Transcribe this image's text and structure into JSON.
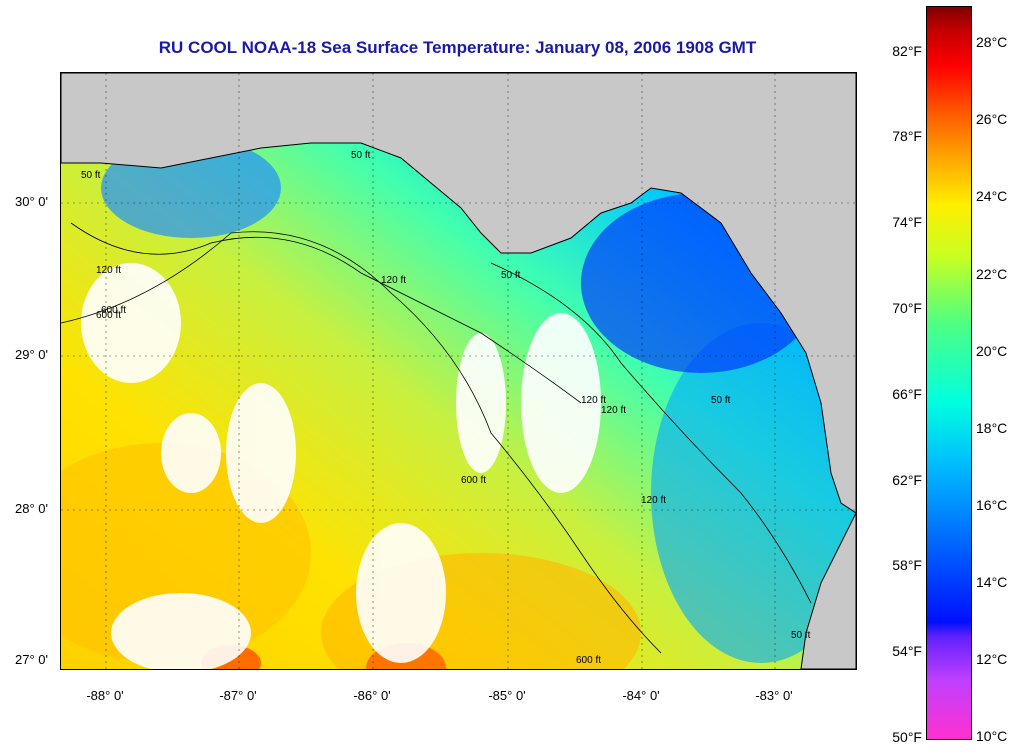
{
  "title": "RU COOL  NOAA-18  Sea Surface Temperature:  January 08, 2006 1908 GMT",
  "latitude_labels": [
    "30° 0'",
    "29° 0'",
    "28° 0'",
    "27° 0'"
  ],
  "longitude_labels": [
    "-88° 0'",
    "-87° 0'",
    "-86° 0'",
    "-85° 0'",
    "-84° 0'",
    "-83° 0'"
  ],
  "colorbar": {
    "fahrenheit_labels": [
      "82°F",
      "78°F",
      "74°F",
      "70°F",
      "66°F",
      "62°F",
      "58°F",
      "54°F",
      "50°F"
    ],
    "celsius_labels": [
      "28°C",
      "26°C",
      "24°C",
      "22°C",
      "20°C",
      "18°C",
      "16°C",
      "14°C",
      "12°C",
      "10°C"
    ],
    "range_celsius": [
      10,
      29
    ]
  },
  "contour_labels": [
    "50 ft",
    "120 ft",
    "600 ft",
    "120 ft",
    "50 ft",
    "600 ft",
    "120 ft",
    "120 ft",
    "50 ft",
    "600 ft",
    "50 ft",
    "120 ft",
    "50 ft",
    "600 ft"
  ],
  "colors": {
    "land": "#c8c8c8",
    "title": "#1a1aa8",
    "coastline": "#000000"
  }
}
